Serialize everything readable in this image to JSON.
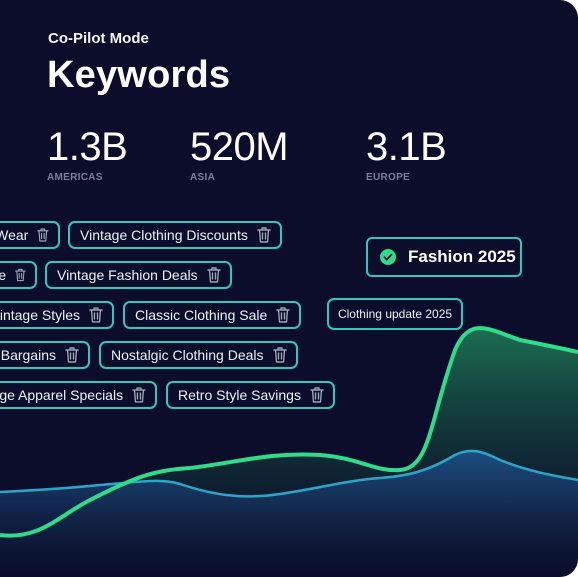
{
  "header": {
    "subtitle": "Co-Pilot Mode",
    "title": "Keywords"
  },
  "stats": [
    {
      "value": "1.3B",
      "label": "AMERICAS"
    },
    {
      "value": "520M",
      "label": "ASIA"
    },
    {
      "value": "3.1B",
      "label": "EUROPE"
    }
  ],
  "keywords": [
    {
      "text": "Wear",
      "icon": "trash-icon"
    },
    {
      "text": "Vintage Clothing Discounts",
      "icon": "trash-icon"
    },
    {
      "text": "e",
      "icon": "trash-icon"
    },
    {
      "text": "Vintage Fashion Deals",
      "icon": "trash-icon"
    },
    {
      "text": "intage Styles",
      "icon": "trash-icon"
    },
    {
      "text": "Classic Clothing Sale",
      "icon": "trash-icon"
    },
    {
      "text": "Bargains",
      "icon": "trash-icon"
    },
    {
      "text": "Nostalgic Clothing Deals",
      "icon": "trash-icon"
    },
    {
      "text": "ge Apparel Specials",
      "icon": "trash-icon"
    },
    {
      "text": "Retro Style Savings",
      "icon": "trash-icon"
    }
  ],
  "selected_tag": {
    "text": "Fashion 2025",
    "icon": "check-circle-icon"
  },
  "update_tag": {
    "text": "Clothing update 2025"
  },
  "colors": {
    "background": "#0b0d2a",
    "accent_green": "#2fdc8a",
    "accent_teal": "#30c8b8",
    "accent_blue": "#2aa7c8"
  }
}
